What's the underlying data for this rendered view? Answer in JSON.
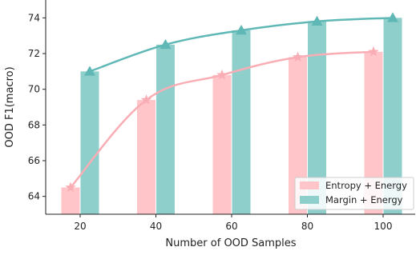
{
  "colors": {
    "entropy_bar": "#ffc5c9",
    "entropy_line": "#f9aeb5",
    "margin_bar": "#8ecfcc",
    "margin_line": "#5fb8b6"
  },
  "chart_data": {
    "type": "bar",
    "title": "",
    "xlabel": "Number of OOD Samples",
    "ylabel": "OOD F1(macro)",
    "categories": [
      "20",
      "40",
      "60",
      "80",
      "100"
    ],
    "ylim": [
      63,
      75
    ],
    "yticks": [
      "64",
      "66",
      "68",
      "70",
      "72",
      "74"
    ],
    "grid": false,
    "legend_position": "lower-right",
    "series": [
      {
        "name": "Entropy + Energy",
        "values": [
          64.5,
          69.4,
          70.8,
          71.8,
          72.1
        ],
        "line_marker": "star"
      },
      {
        "name": "Margin + Energy",
        "values": [
          71.0,
          72.5,
          73.3,
          73.8,
          74.0
        ],
        "line_marker": "triangle"
      }
    ]
  }
}
